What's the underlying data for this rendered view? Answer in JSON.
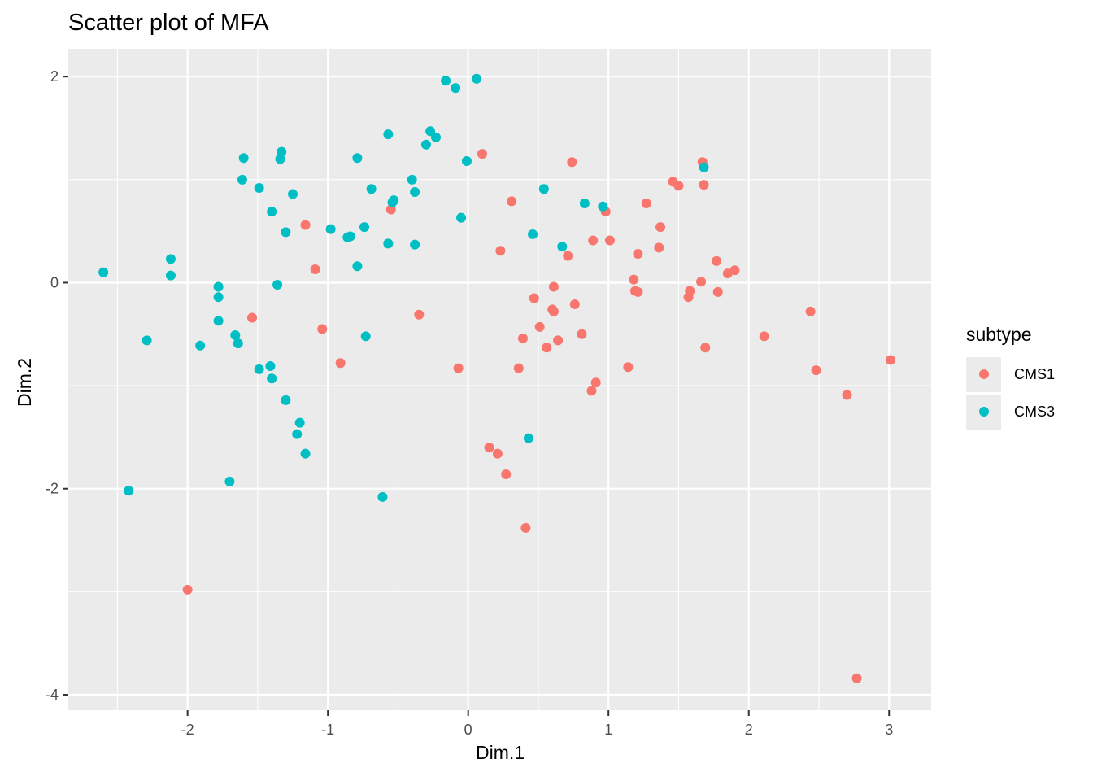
{
  "chart_data": {
    "type": "scatter",
    "title": "Scatter plot of MFA",
    "xlabel": "Dim.1",
    "ylabel": "Dim.2",
    "xlim": [
      -2.85,
      3.3
    ],
    "ylim": [
      -4.15,
      2.27
    ],
    "xticks": [
      -2,
      -1,
      0,
      1,
      2,
      3
    ],
    "yticks": [
      -4,
      -2,
      0,
      2
    ],
    "grid": true,
    "legend": {
      "title": "subtype",
      "position": "right"
    },
    "series": [
      {
        "name": "CMS1",
        "color": "#F8766D",
        "points": [
          [
            0.1,
            1.25
          ],
          [
            0.74,
            1.17
          ],
          [
            1.67,
            1.17
          ],
          [
            1.46,
            0.98
          ],
          [
            1.5,
            0.94
          ],
          [
            1.68,
            0.95
          ],
          [
            0.31,
            0.79
          ],
          [
            1.27,
            0.77
          ],
          [
            0.98,
            0.69
          ],
          [
            -0.55,
            0.71
          ],
          [
            -1.16,
            0.56
          ],
          [
            1.37,
            0.54
          ],
          [
            0.89,
            0.41
          ],
          [
            1.01,
            0.41
          ],
          [
            0.23,
            0.31
          ],
          [
            1.36,
            0.34
          ],
          [
            1.21,
            0.28
          ],
          [
            0.71,
            0.26
          ],
          [
            1.77,
            0.21
          ],
          [
            1.9,
            0.12
          ],
          [
            1.85,
            0.09
          ],
          [
            -1.09,
            0.13
          ],
          [
            1.18,
            0.03
          ],
          [
            1.66,
            0.01
          ],
          [
            0.61,
            -0.04
          ],
          [
            1.19,
            -0.08
          ],
          [
            1.21,
            -0.09
          ],
          [
            1.58,
            -0.08
          ],
          [
            1.78,
            -0.09
          ],
          [
            1.57,
            -0.14
          ],
          [
            0.47,
            -0.15
          ],
          [
            0.76,
            -0.21
          ],
          [
            0.6,
            -0.26
          ],
          [
            0.61,
            -0.28
          ],
          [
            -0.35,
            -0.31
          ],
          [
            2.44,
            -0.28
          ],
          [
            -1.54,
            -0.34
          ],
          [
            -1.04,
            -0.45
          ],
          [
            0.51,
            -0.43
          ],
          [
            0.81,
            -0.5
          ],
          [
            2.11,
            -0.52
          ],
          [
            0.39,
            -0.54
          ],
          [
            0.64,
            -0.56
          ],
          [
            0.56,
            -0.63
          ],
          [
            1.69,
            -0.63
          ],
          [
            3.01,
            -0.75
          ],
          [
            -0.91,
            -0.78
          ],
          [
            0.36,
            -0.83
          ],
          [
            -0.07,
            -0.83
          ],
          [
            1.14,
            -0.82
          ],
          [
            2.48,
            -0.85
          ],
          [
            0.91,
            -0.97
          ],
          [
            0.88,
            -1.05
          ],
          [
            2.7,
            -1.09
          ],
          [
            0.15,
            -1.6
          ],
          [
            0.21,
            -1.66
          ],
          [
            0.27,
            -1.86
          ],
          [
            0.41,
            -2.38
          ],
          [
            -2.0,
            -2.98
          ],
          [
            2.77,
            -3.84
          ]
        ]
      },
      {
        "name": "CMS3",
        "color": "#00BFC4",
        "points": [
          [
            0.06,
            1.98
          ],
          [
            -0.16,
            1.96
          ],
          [
            -0.09,
            1.89
          ],
          [
            -0.27,
            1.47
          ],
          [
            -0.23,
            1.41
          ],
          [
            -0.57,
            1.44
          ],
          [
            -0.3,
            1.34
          ],
          [
            -1.33,
            1.27
          ],
          [
            -1.6,
            1.21
          ],
          [
            -0.79,
            1.21
          ],
          [
            -1.34,
            1.2
          ],
          [
            -0.01,
            1.18
          ],
          [
            1.68,
            1.12
          ],
          [
            -1.61,
            1.0
          ],
          [
            -0.4,
            1.0
          ],
          [
            -1.49,
            0.92
          ],
          [
            -0.69,
            0.91
          ],
          [
            0.54,
            0.91
          ],
          [
            -0.38,
            0.88
          ],
          [
            -1.25,
            0.86
          ],
          [
            -0.53,
            0.8
          ],
          [
            -0.54,
            0.78
          ],
          [
            0.83,
            0.77
          ],
          [
            0.96,
            0.74
          ],
          [
            -1.4,
            0.69
          ],
          [
            -0.05,
            0.63
          ],
          [
            -0.74,
            0.54
          ],
          [
            -0.98,
            0.52
          ],
          [
            -1.3,
            0.49
          ],
          [
            0.46,
            0.47
          ],
          [
            -0.84,
            0.45
          ],
          [
            -0.86,
            0.44
          ],
          [
            -0.57,
            0.38
          ],
          [
            -0.38,
            0.37
          ],
          [
            0.67,
            0.35
          ],
          [
            -2.12,
            0.23
          ],
          [
            -0.79,
            0.16
          ],
          [
            -2.6,
            0.1
          ],
          [
            -2.12,
            0.07
          ],
          [
            -1.36,
            -0.02
          ],
          [
            -1.78,
            -0.04
          ],
          [
            -1.78,
            -0.14
          ],
          [
            -1.78,
            -0.37
          ],
          [
            -1.66,
            -0.51
          ],
          [
            -0.73,
            -0.52
          ],
          [
            -2.29,
            -0.56
          ],
          [
            -1.64,
            -0.59
          ],
          [
            -1.91,
            -0.61
          ],
          [
            -1.41,
            -0.81
          ],
          [
            -1.49,
            -0.84
          ],
          [
            -1.4,
            -0.93
          ],
          [
            -1.3,
            -1.14
          ],
          [
            -1.2,
            -1.36
          ],
          [
            -1.22,
            -1.47
          ],
          [
            0.43,
            -1.51
          ],
          [
            -1.16,
            -1.66
          ],
          [
            -1.7,
            -1.93
          ],
          [
            -2.42,
            -2.02
          ],
          [
            -0.61,
            -2.08
          ]
        ]
      }
    ]
  },
  "legend": {
    "title": "subtype",
    "items": [
      {
        "label": "CMS1",
        "color": "#F8766D"
      },
      {
        "label": "CMS3",
        "color": "#00BFC4"
      }
    ]
  },
  "colors": {
    "panel_bg": "#EBEBEB",
    "grid": "#FFFFFF",
    "tick_text": "#4D4D4D"
  }
}
